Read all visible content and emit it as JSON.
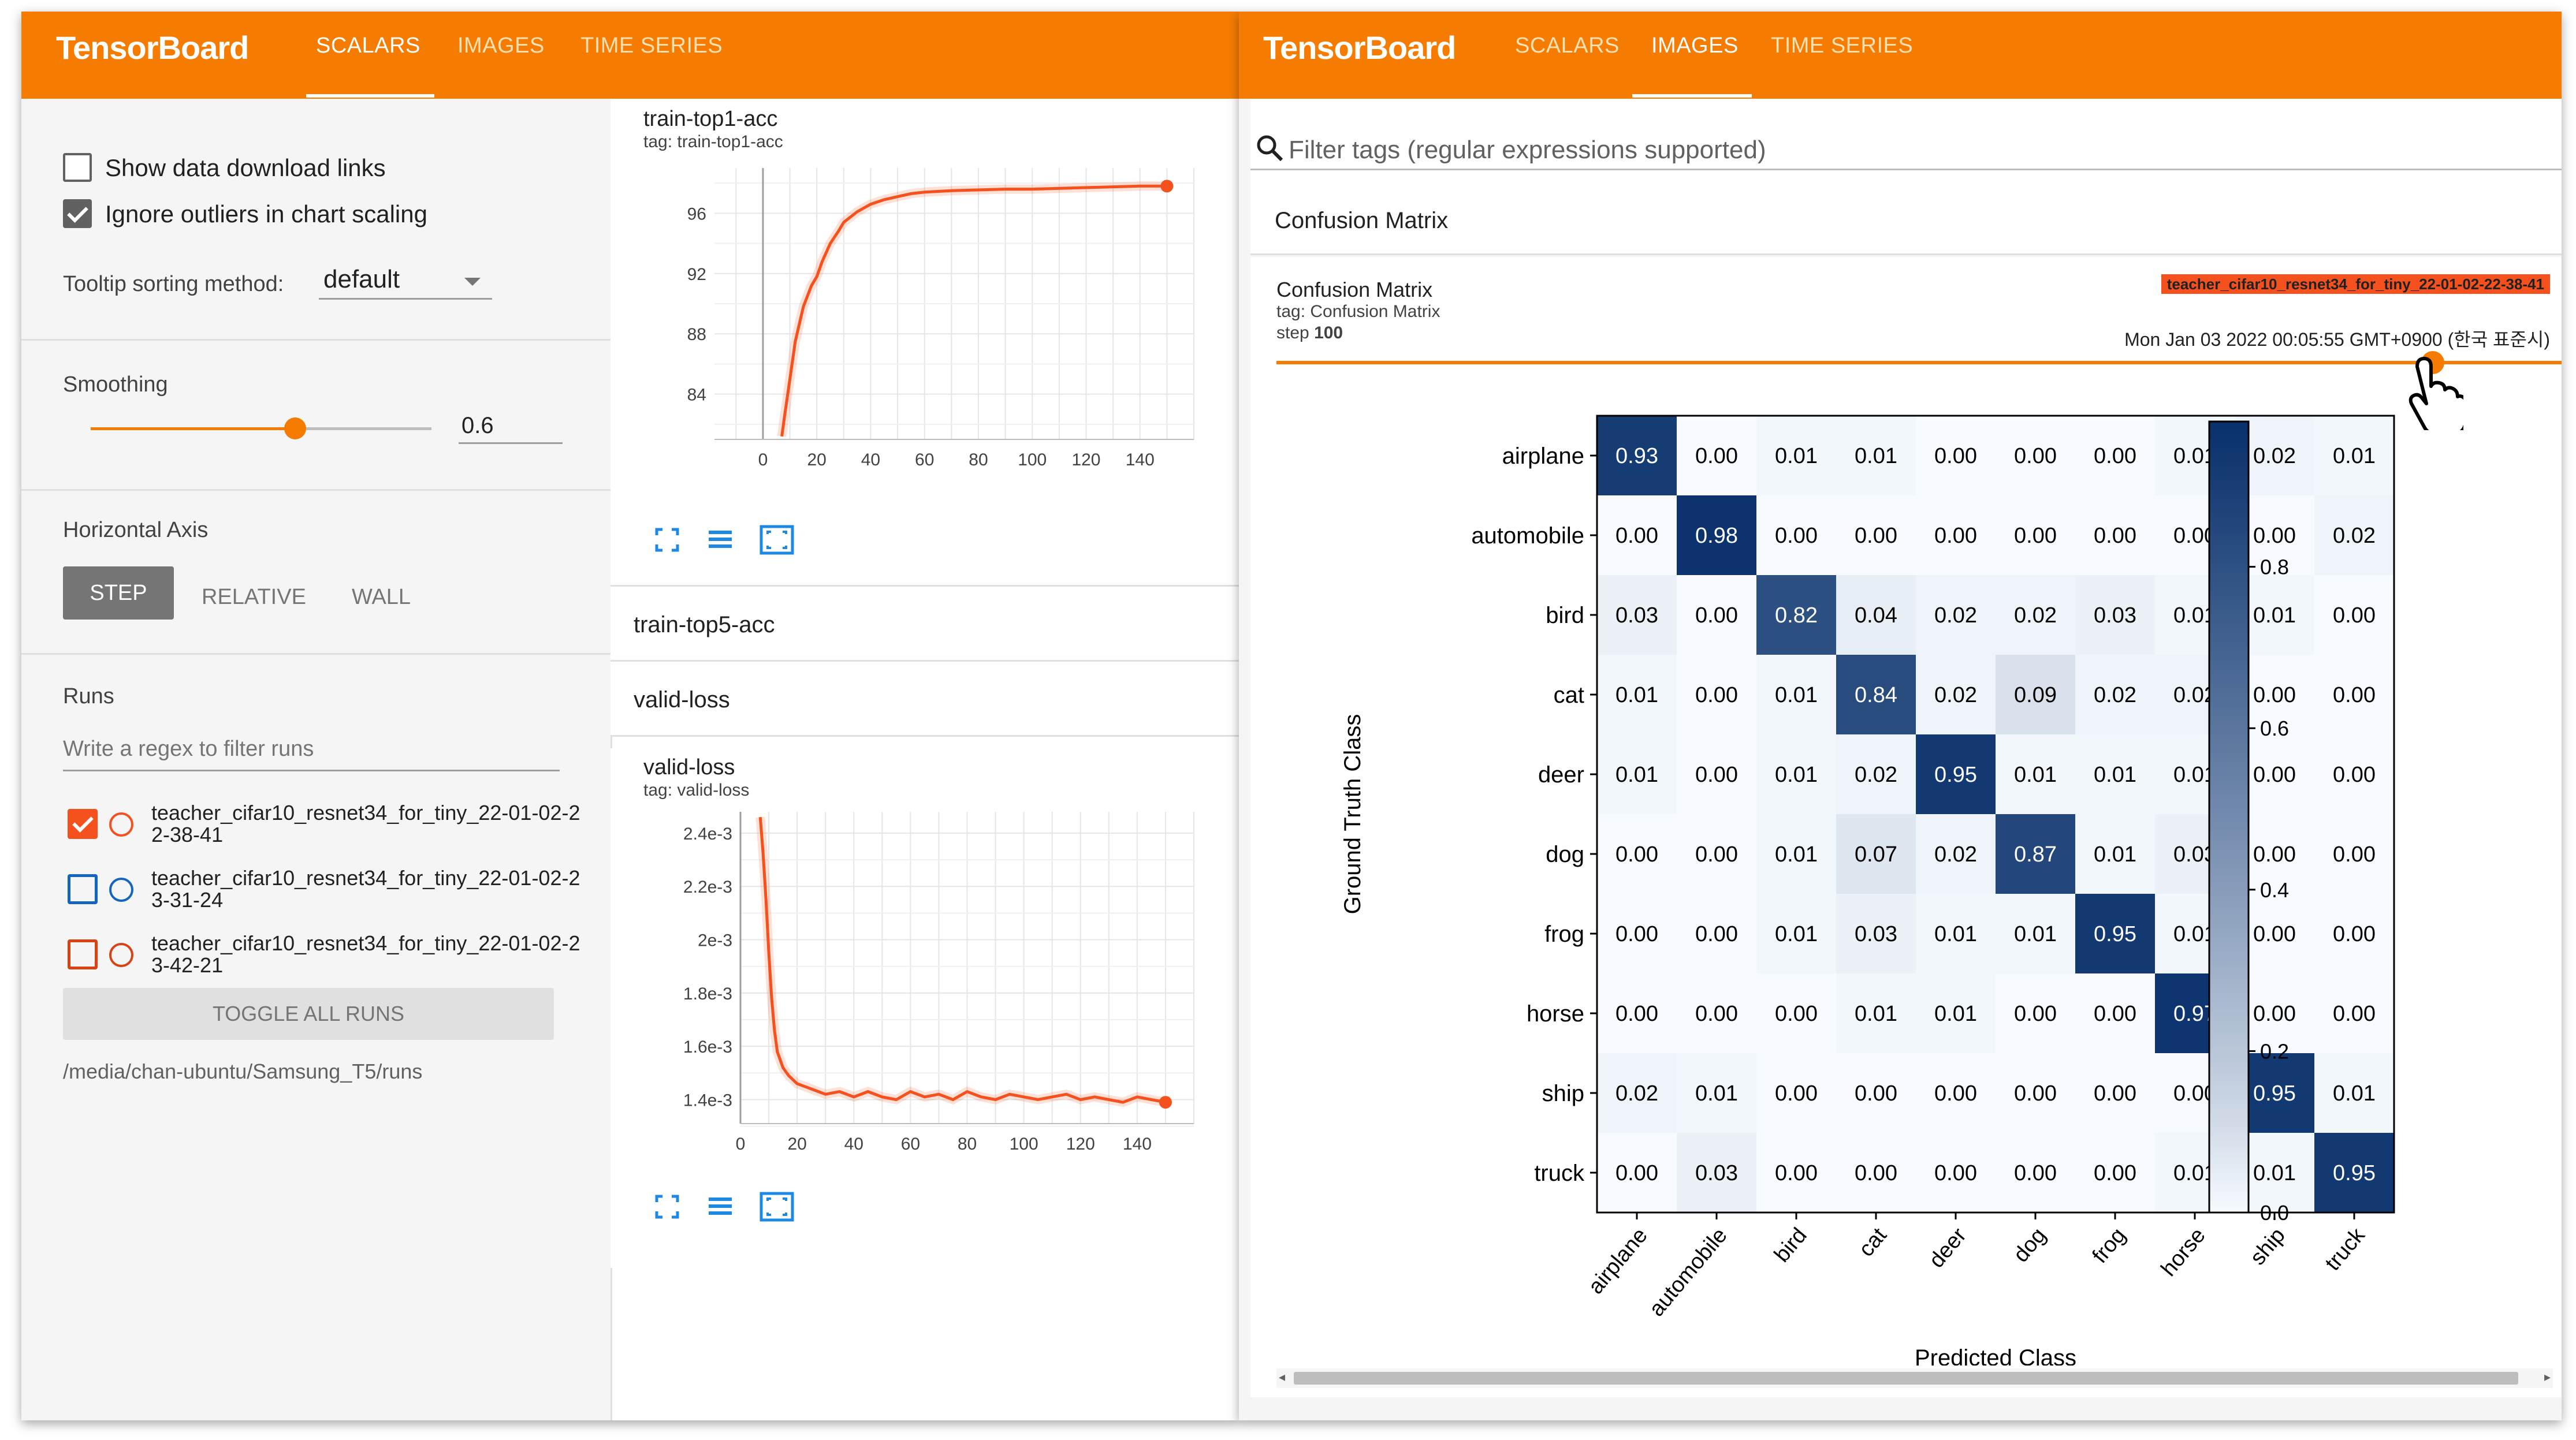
{
  "left_window": {
    "brand": "TensorBoard",
    "tabs": [
      {
        "label": "SCALARS",
        "active": true
      },
      {
        "label": "IMAGES",
        "active": false
      },
      {
        "label": "TIME SERIES",
        "active": false
      }
    ],
    "settings": {
      "show_download": "Show data download links",
      "ignore_outliers": "Ignore outliers in chart scaling",
      "tooltip_label": "Tooltip sorting method:",
      "tooltip_value": "default",
      "smoothing_label": "Smoothing",
      "smoothing_value": "0.6",
      "smoothing_fraction": 0.6,
      "hax_label": "Horizontal Axis",
      "hax_options": [
        "STEP",
        "RELATIVE",
        "WALL"
      ],
      "hax_selected": "STEP"
    },
    "runs": {
      "title": "Runs",
      "filter_placeholder": "Write a regex to filter runs",
      "items": [
        {
          "name": "teacher_cifar10_resnet34_for_tiny_22-01-02-22-38-41",
          "checked": true,
          "color": "#f4511e"
        },
        {
          "name": "teacher_cifar10_resnet34_for_tiny_22-01-02-23-31-24",
          "checked": false,
          "color": "#1565c0"
        },
        {
          "name": "teacher_cifar10_resnet34_for_tiny_22-01-02-23-42-21",
          "checked": false,
          "color": "#d84315"
        }
      ],
      "toggle_all": "TOGGLE ALL RUNS",
      "path": "/media/chan-ubuntu/Samsung_T5/runs"
    },
    "cards": {
      "c1_title": "train-top1-acc",
      "c1_tag": "tag: train-top1-acc",
      "c2_title": "train-top5-acc",
      "c3_title": "valid-loss",
      "c4_title": "valid-loss",
      "c4_tag": "tag: valid-loss"
    },
    "icons": [
      "fullscreen-icon",
      "data-table-icon",
      "fit-domain-icon"
    ]
  },
  "right_window": {
    "brand": "TensorBoard",
    "tabs": [
      {
        "label": "SCALARS",
        "active": false
      },
      {
        "label": "IMAGES",
        "active": true
      },
      {
        "label": "TIME SERIES",
        "active": false
      }
    ],
    "filter_placeholder": "Filter tags (regular expressions supported)",
    "section_title": "Confusion Matrix",
    "image_card": {
      "title": "Confusion Matrix",
      "tag": "tag: Confusion Matrix",
      "step_label": "step",
      "step_value": "100",
      "run_badge": "teacher_cifar10_resnet34_for_tiny_22-01-02-22-38-41",
      "timestamp": "Mon Jan 03 2022 00:05:55 GMT+0900 (한국 표준시)"
    }
  },
  "chart_data": [
    {
      "type": "line",
      "title": "train-top1-acc",
      "x_ticks": [
        0,
        20,
        40,
        60,
        80,
        100,
        120,
        140
      ],
      "y_ticks": [
        84,
        88,
        92,
        96
      ],
      "xlim": [
        -18,
        160
      ],
      "ylim": [
        81,
        99
      ],
      "series": [
        {
          "name": "teacher_cifar10_resnet34_for_tiny_22-01-02-22-38-41",
          "color": "#f4511e",
          "x": [
            7,
            8,
            10,
            12,
            15,
            18,
            20,
            22,
            25,
            28,
            30,
            35,
            40,
            45,
            50,
            55,
            60,
            70,
            80,
            90,
            100,
            110,
            120,
            130,
            140,
            150
          ],
          "y": [
            81.2,
            82.5,
            85,
            87.5,
            89.8,
            91.2,
            91.8,
            92.8,
            94,
            94.8,
            95.4,
            96.1,
            96.6,
            96.9,
            97.1,
            97.3,
            97.4,
            97.5,
            97.55,
            97.6,
            97.6,
            97.65,
            97.7,
            97.75,
            97.8,
            97.8
          ]
        }
      ]
    },
    {
      "type": "line",
      "title": "valid-loss",
      "x_ticks": [
        0,
        20,
        40,
        60,
        80,
        100,
        120,
        140
      ],
      "y_ticks": [
        "1.4e-3",
        "1.6e-3",
        "1.8e-3",
        "2e-3",
        "2.2e-3",
        "2.4e-3"
      ],
      "xlim": [
        0,
        160
      ],
      "ylim": [
        0.00131,
        0.00248
      ],
      "series": [
        {
          "name": "teacher_cifar10_resnet34_for_tiny_22-01-02-22-38-41",
          "color": "#f4511e",
          "x": [
            7,
            8,
            9,
            10,
            11,
            12,
            13,
            15,
            17,
            20,
            25,
            30,
            35,
            40,
            45,
            50,
            55,
            60,
            65,
            70,
            75,
            80,
            85,
            90,
            95,
            100,
            105,
            110,
            115,
            120,
            125,
            130,
            135,
            140,
            145,
            150
          ],
          "y": [
            0.00246,
            0.00232,
            0.00215,
            0.00195,
            0.00178,
            0.00166,
            0.00158,
            0.00152,
            0.00149,
            0.00146,
            0.00144,
            0.00142,
            0.00143,
            0.00141,
            0.00143,
            0.00141,
            0.0014,
            0.00143,
            0.00141,
            0.00142,
            0.0014,
            0.00143,
            0.00141,
            0.0014,
            0.00142,
            0.00141,
            0.0014,
            0.00141,
            0.00142,
            0.0014,
            0.00141,
            0.0014,
            0.00139,
            0.00141,
            0.0014,
            0.00139
          ]
        }
      ]
    },
    {
      "type": "heatmap",
      "xlabel": "Predicted Class",
      "ylabel": "Ground Truth Class",
      "classes": [
        "airplane",
        "automobile",
        "bird",
        "cat",
        "deer",
        "dog",
        "frog",
        "horse",
        "ship",
        "truck"
      ],
      "colorbar_ticks": [
        "0.0",
        "0.2",
        "0.4",
        "0.6",
        "0.8"
      ],
      "matrix": [
        [
          "0.93",
          "0.00",
          "0.01",
          "0.01",
          "0.00",
          "0.00",
          "0.00",
          "0.01",
          "0.02",
          "0.01"
        ],
        [
          "0.00",
          "0.98",
          "0.00",
          "0.00",
          "0.00",
          "0.00",
          "0.00",
          "0.00",
          "0.00",
          "0.02"
        ],
        [
          "0.03",
          "0.00",
          "0.82",
          "0.04",
          "0.02",
          "0.02",
          "0.03",
          "0.01",
          "0.01",
          "0.00"
        ],
        [
          "0.01",
          "0.00",
          "0.01",
          "0.84",
          "0.02",
          "0.09",
          "0.02",
          "0.02",
          "0.00",
          "0.00"
        ],
        [
          "0.01",
          "0.00",
          "0.01",
          "0.02",
          "0.95",
          "0.01",
          "0.01",
          "0.01",
          "0.00",
          "0.00"
        ],
        [
          "0.00",
          "0.00",
          "0.01",
          "0.07",
          "0.02",
          "0.87",
          "0.01",
          "0.03",
          "0.00",
          "0.00"
        ],
        [
          "0.00",
          "0.00",
          "0.01",
          "0.03",
          "0.01",
          "0.01",
          "0.95",
          "0.01",
          "0.00",
          "0.00"
        ],
        [
          "0.00",
          "0.00",
          "0.00",
          "0.01",
          "0.01",
          "0.00",
          "0.00",
          "0.97",
          "0.00",
          "0.00"
        ],
        [
          "0.02",
          "0.01",
          "0.00",
          "0.00",
          "0.00",
          "0.00",
          "0.00",
          "0.00",
          "0.95",
          "0.01"
        ],
        [
          "0.00",
          "0.03",
          "0.00",
          "0.00",
          "0.00",
          "0.00",
          "0.00",
          "0.01",
          "0.01",
          "0.95"
        ]
      ]
    }
  ]
}
